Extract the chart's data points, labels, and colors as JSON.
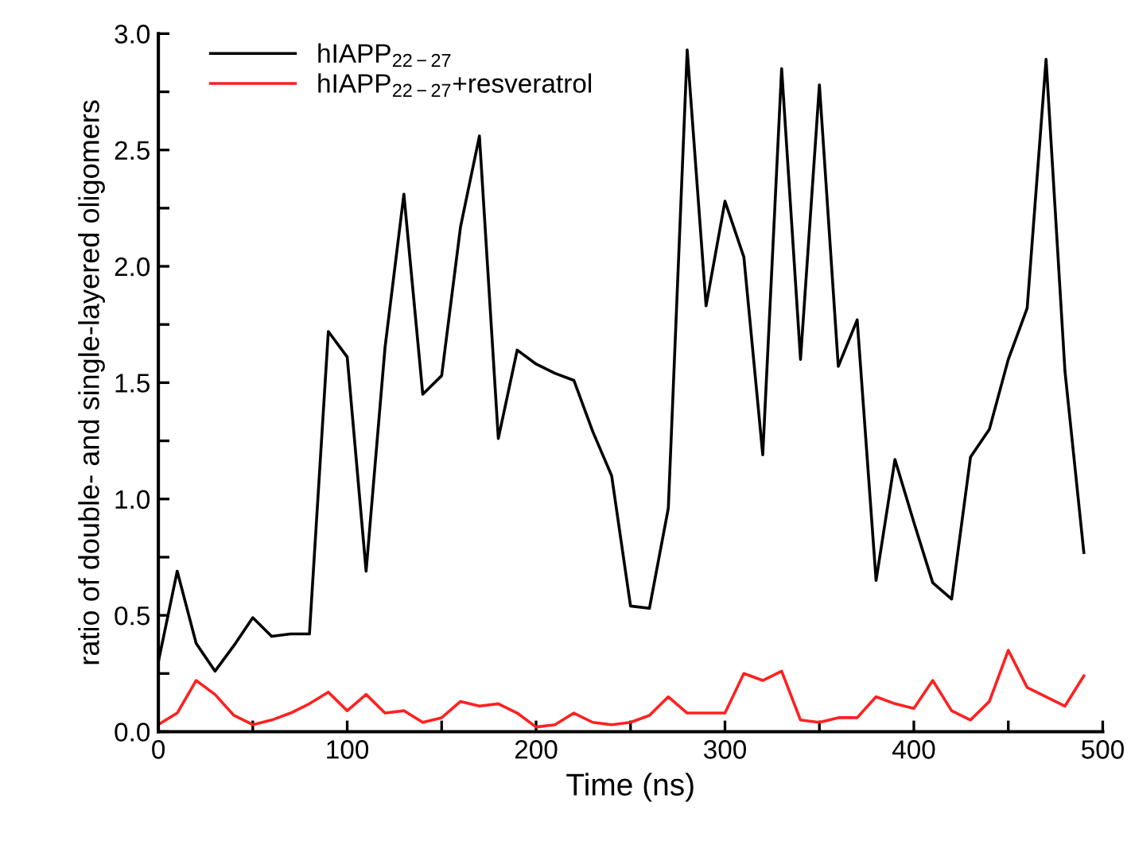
{
  "chart_data": {
    "type": "line",
    "xlabel": "Time (ns)",
    "ylabel": "ratio of double- and single-layered oligomers",
    "x": [
      0,
      10,
      20,
      30,
      40,
      50,
      60,
      70,
      80,
      90,
      100,
      110,
      120,
      130,
      140,
      150,
      160,
      170,
      180,
      190,
      200,
      210,
      220,
      230,
      240,
      250,
      260,
      270,
      280,
      290,
      300,
      310,
      320,
      330,
      340,
      350,
      360,
      370,
      380,
      390,
      400,
      410,
      420,
      430,
      440,
      450,
      460,
      470,
      480,
      490
    ],
    "series": [
      {
        "name": "hIAPP$_{22−27}$",
        "color": "#000000",
        "values": [
          0.3,
          0.69,
          0.38,
          0.26,
          0.37,
          0.49,
          0.41,
          0.42,
          0.42,
          1.72,
          1.61,
          0.69,
          1.65,
          2.31,
          1.45,
          1.53,
          2.17,
          2.56,
          1.26,
          1.64,
          1.58,
          1.54,
          1.51,
          1.29,
          1.1,
          0.54,
          0.53,
          0.96,
          2.93,
          1.83,
          2.28,
          2.04,
          1.19,
          2.85,
          1.6,
          2.78,
          1.57,
          1.77,
          0.65,
          1.17,
          0.9,
          0.64,
          0.57,
          1.18,
          1.3,
          1.6,
          1.82,
          2.89,
          1.55,
          0.77
        ]
      },
      {
        "name": "hIAPP$_{22−27}$+resveratrol",
        "color": "#ff2020",
        "values": [
          0.03,
          0.08,
          0.22,
          0.16,
          0.07,
          0.03,
          0.05,
          0.08,
          0.12,
          0.17,
          0.09,
          0.16,
          0.08,
          0.09,
          0.04,
          0.06,
          0.13,
          0.11,
          0.12,
          0.08,
          0.02,
          0.03,
          0.08,
          0.04,
          0.03,
          0.04,
          0.07,
          0.15,
          0.08,
          0.08,
          0.08,
          0.25,
          0.22,
          0.26,
          0.05,
          0.04,
          0.06,
          0.06,
          0.15,
          0.12,
          0.1,
          0.22,
          0.09,
          0.05,
          0.13,
          0.35,
          0.19,
          0.15,
          0.11,
          0.24
        ]
      }
    ],
    "xlim": [
      0,
      500
    ],
    "ylim": [
      0,
      3.0
    ],
    "xticks": [
      0,
      {
        "value": 50,
        "label": null
      },
      100,
      {
        "value": 150,
        "label": null
      },
      200,
      {
        "value": 250,
        "label": null
      },
      300,
      {
        "value": 350,
        "label": null
      },
      400,
      {
        "value": 450,
        "label": null
      },
      500
    ],
    "yticks": [
      {
        "value": 0,
        "label": "0.0"
      },
      {
        "value": 0.25,
        "label": null
      },
      {
        "value": 0.5,
        "label": "0.5"
      },
      {
        "value": 0.75,
        "label": null
      },
      {
        "value": 1.0,
        "label": "1.0"
      },
      {
        "value": 1.25,
        "label": null
      },
      {
        "value": 1.5,
        "label": "1.5"
      },
      {
        "value": 1.75,
        "label": null
      },
      {
        "value": 2.0,
        "label": "2.0"
      },
      {
        "value": 2.25,
        "label": null
      },
      {
        "value": 2.5,
        "label": "2.5"
      },
      {
        "value": 2.75,
        "label": null
      },
      {
        "value": 3.0,
        "label": "3.0"
      }
    ],
    "grid": false,
    "legend": "top left",
    "marker": "none",
    "line_style": "solid"
  }
}
